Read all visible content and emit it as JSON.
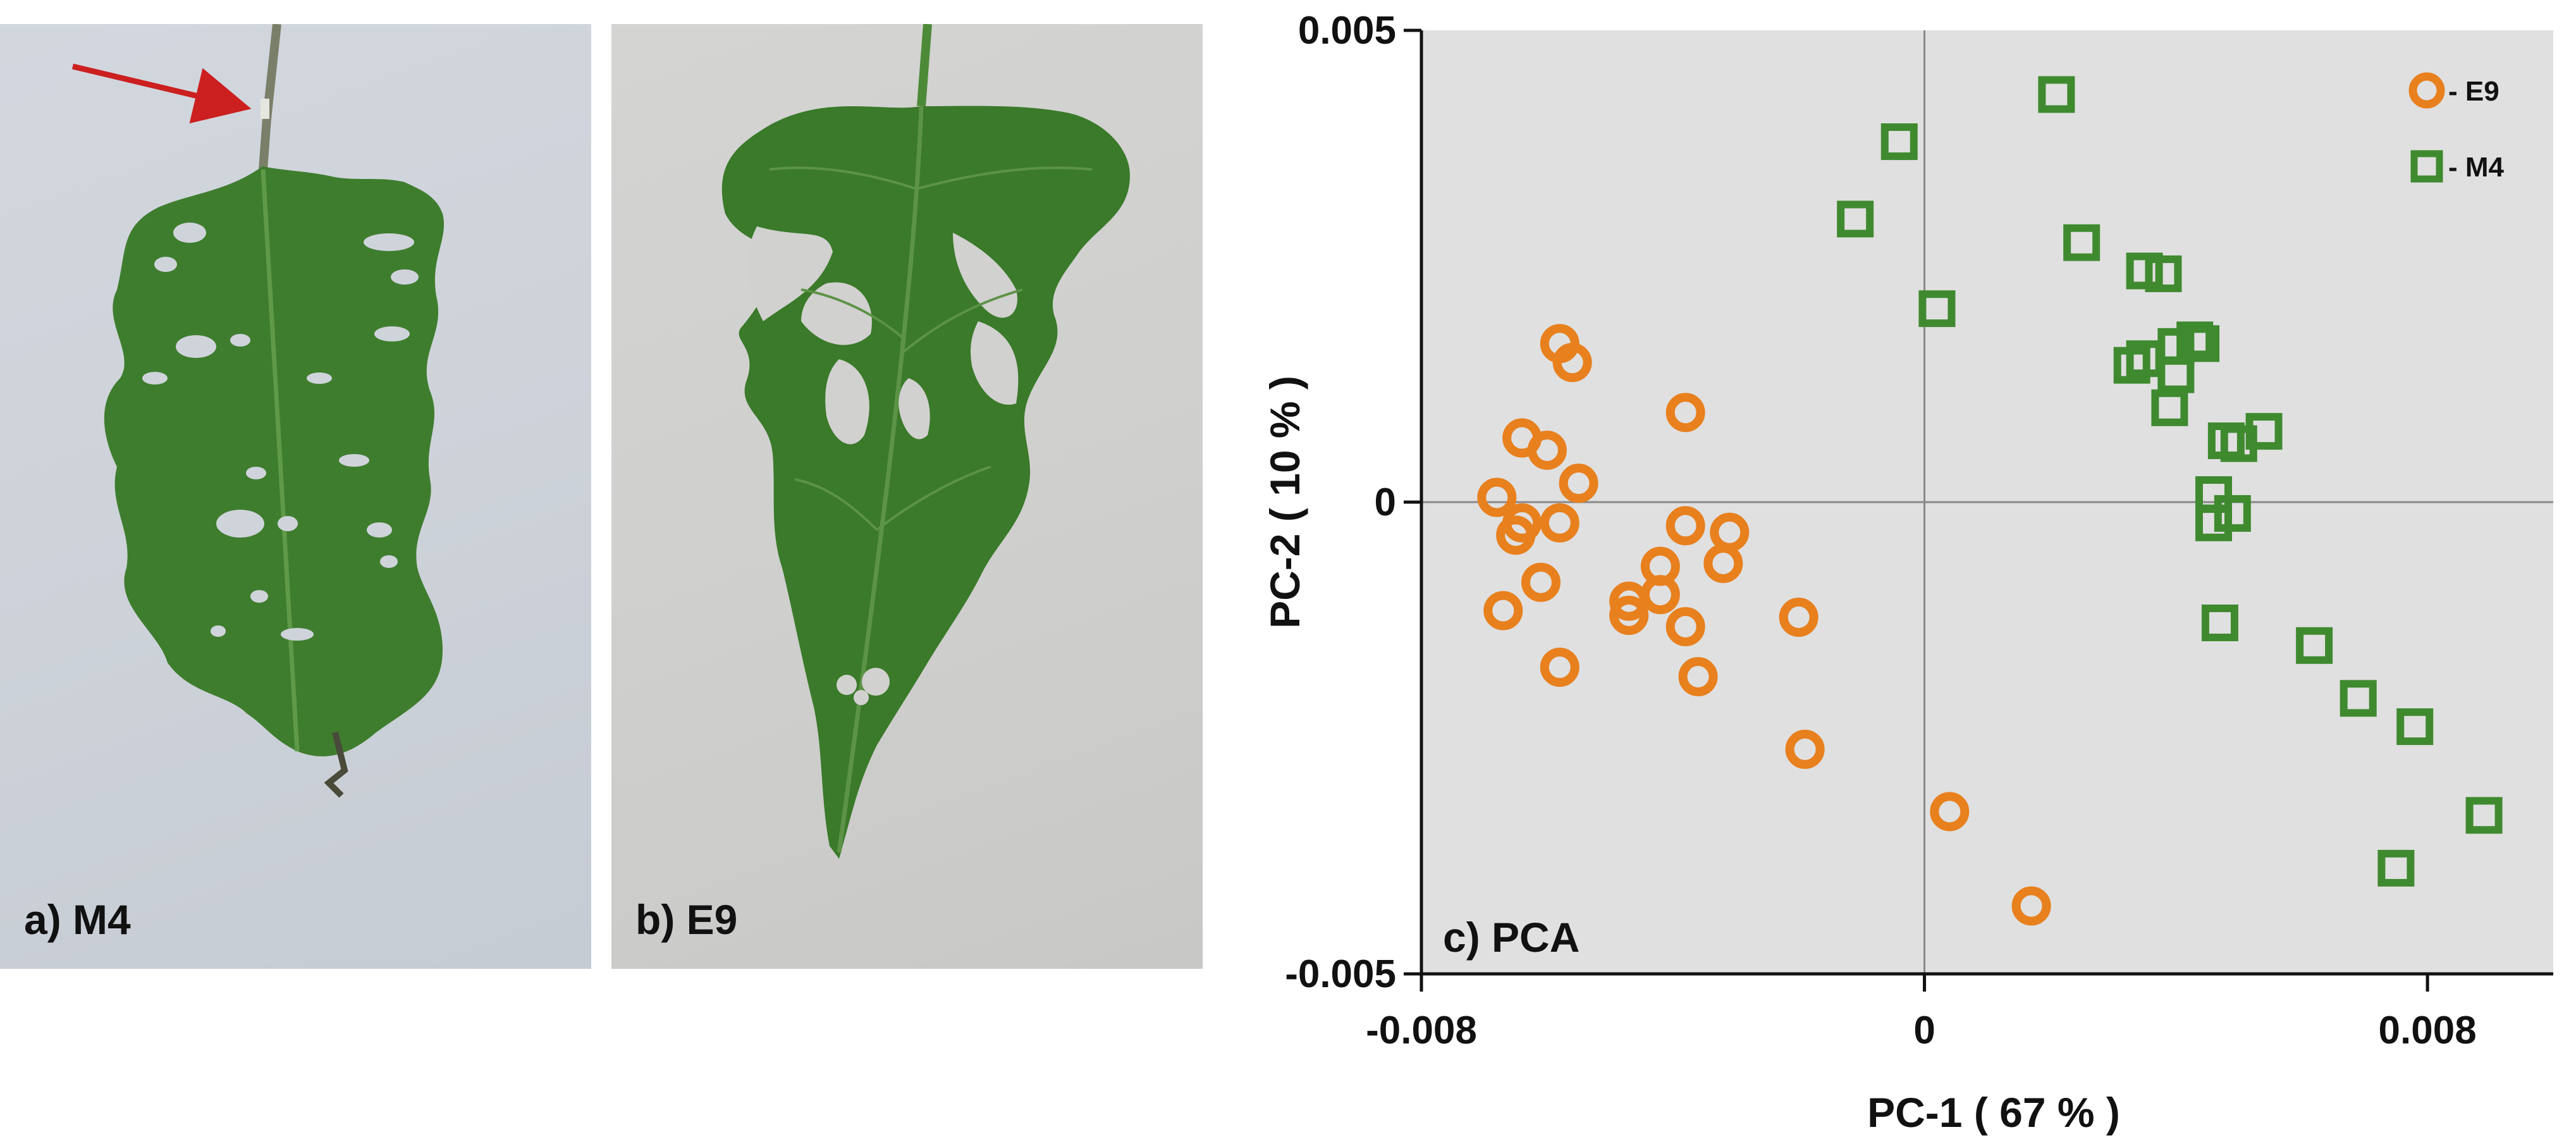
{
  "photos": {
    "a": {
      "label": "a) M4",
      "leaf_color": "#3f7d2e",
      "arrow_color": "#cc1f1f"
    },
    "b": {
      "label": "b) E9",
      "leaf_color": "#3a7a2a"
    }
  },
  "chart_data": {
    "type": "scatter",
    "label": "c) PCA",
    "xlabel": "PC-1 ( 67 % )",
    "ylabel": "PC-2 ( 10 % )",
    "xlim": [
      -0.008,
      0.01
    ],
    "ylim": [
      -0.005,
      0.005
    ],
    "xticks": [
      "-0.008",
      "0",
      "0.008"
    ],
    "yticks": [
      "0.005",
      "0",
      "-0.005"
    ],
    "grid": false,
    "background": "#e0e0e0",
    "legend_position": "top-right",
    "series": [
      {
        "name": "- E9",
        "marker": "circle",
        "color": "#e8801e",
        "points": [
          [
            -0.0068,
            5e-05
          ],
          [
            -0.0064,
            0.00068
          ],
          [
            -0.0058,
            0.00168
          ],
          [
            -0.0056,
            0.00148
          ],
          [
            -0.0064,
            -0.00022
          ],
          [
            -0.0065,
            -0.00035
          ],
          [
            -0.0058,
            -0.00022
          ],
          [
            -0.006,
            0.00055
          ],
          [
            -0.0055,
            0.0002
          ],
          [
            -0.0067,
            -0.00115
          ],
          [
            -0.0061,
            -0.00085
          ],
          [
            -0.0058,
            -0.00175
          ],
          [
            -0.0038,
            0.00095
          ],
          [
            -0.0038,
            -0.00025
          ],
          [
            -0.0031,
            -0.00032
          ],
          [
            -0.0042,
            -0.00068
          ],
          [
            -0.0032,
            -0.00065
          ],
          [
            -0.0047,
            -0.00105
          ],
          [
            -0.0047,
            -0.0012
          ],
          [
            -0.0042,
            -0.00098
          ],
          [
            -0.0038,
            -0.00132
          ],
          [
            -0.0036,
            -0.00185
          ],
          [
            -0.002,
            -0.00122
          ],
          [
            -0.0019,
            -0.00262
          ],
          [
            0.0004,
            -0.00328
          ],
          [
            0.0017,
            -0.00428
          ]
        ]
      },
      {
        "name": "- M4",
        "marker": "square",
        "color": "#3f8a2f",
        "points": [
          [
            0.0021,
            0.00432
          ],
          [
            -0.0004,
            0.00382
          ],
          [
            -0.0011,
            0.003
          ],
          [
            0.0002,
            0.00205
          ],
          [
            0.0025,
            0.00275
          ],
          [
            0.0035,
            0.00245
          ],
          [
            0.0038,
            0.00242
          ],
          [
            0.0033,
            0.00145
          ],
          [
            0.0035,
            0.00152
          ],
          [
            0.004,
            0.00165
          ],
          [
            0.0043,
            0.00172
          ],
          [
            0.0044,
            0.00168
          ],
          [
            0.004,
            0.00135
          ],
          [
            0.0039,
            0.001
          ],
          [
            0.0048,
            0.00065
          ],
          [
            0.005,
            0.00062
          ],
          [
            0.0054,
            0.00075
          ],
          [
            0.0046,
            8e-05
          ],
          [
            0.0049,
            -0.00012
          ],
          [
            0.0046,
            -0.00022
          ],
          [
            0.0047,
            -0.00128
          ],
          [
            0.0062,
            -0.00152
          ],
          [
            0.0069,
            -0.00208
          ],
          [
            0.0078,
            -0.00238
          ],
          [
            0.0089,
            -0.00332
          ],
          [
            0.0075,
            -0.00388
          ]
        ]
      }
    ]
  }
}
